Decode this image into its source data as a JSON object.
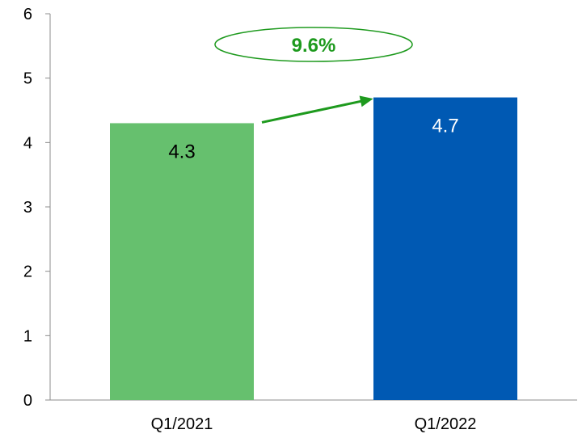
{
  "chart_data": {
    "type": "bar",
    "categories": [
      "Q1/2021",
      "Q1/2022"
    ],
    "values": [
      4.3,
      4.7
    ],
    "bar_colors": [
      "#66c06e",
      "#0059b3"
    ],
    "data_label_colors": [
      "#000000",
      "#ffffff"
    ],
    "ylim": [
      0,
      6
    ],
    "yticks": [
      0,
      1,
      2,
      3,
      4,
      5,
      6
    ],
    "grid": false,
    "annotation": {
      "text": "9.6%",
      "color": "#1e9a1e",
      "shape": "ellipse",
      "arrow": "from Q1/2021 bar top to Q1/2022 bar top"
    }
  }
}
